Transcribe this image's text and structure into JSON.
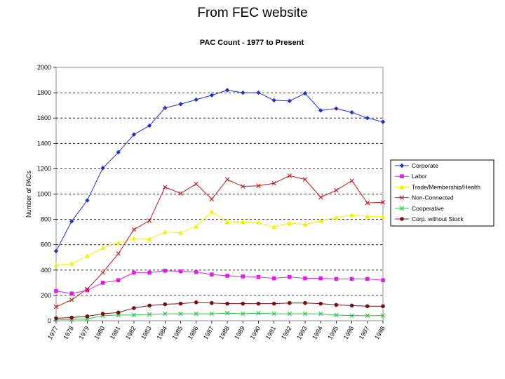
{
  "slide": {
    "title": "From FEC website"
  },
  "chart_data": {
    "type": "line",
    "title": "PAC Count - 1977 to Present",
    "xlabel": "",
    "ylabel": "Number of PACs",
    "ylim": [
      0,
      2000
    ],
    "yticks": [
      0,
      200,
      400,
      600,
      800,
      1000,
      1200,
      1400,
      1600,
      1800,
      2000
    ],
    "grid": "horizontal dashed",
    "legend_position": "right",
    "categories": [
      "1977",
      "1978",
      "1979",
      "1980",
      "1981",
      "1982",
      "1983",
      "1984",
      "1985",
      "1986",
      "1987",
      "1988",
      "1989",
      "1990",
      "1991",
      "1992",
      "1993",
      "1994",
      "1995",
      "1996",
      "1997",
      "1998"
    ],
    "x_tick_labels": [
      "1977",
      "1978",
      "1979",
      "1980",
      "1981",
      "1982",
      "1983",
      "1984",
      "1985",
      "1986",
      "1987",
      "1988",
      "1989",
      "1990",
      "1991",
      "1992",
      "1993",
      "1994",
      "1995",
      "1996",
      "1997",
      "1998"
    ],
    "series": [
      {
        "name": "Corporate",
        "color": "#1f32c8",
        "marker": "diamond",
        "values": [
          550,
          785,
          950,
          1205,
          1330,
          1470,
          1540,
          1680,
          1710,
          1745,
          1780,
          1820,
          1800,
          1800,
          1740,
          1735,
          1795,
          1660,
          1675,
          1645,
          1600,
          1570
        ]
      },
      {
        "name": "Labor",
        "color": "#e020e0",
        "marker": "square",
        "values": [
          235,
          215,
          240,
          300,
          320,
          380,
          380,
          395,
          390,
          385,
          365,
          355,
          350,
          345,
          335,
          345,
          335,
          335,
          330,
          330,
          330,
          320
        ]
      },
      {
        "name": "Trade/Membership/Health",
        "color": "#f2f200",
        "marker": "triangle",
        "values": [
          440,
          450,
          510,
          575,
          615,
          650,
          645,
          700,
          695,
          745,
          860,
          780,
          780,
          775,
          740,
          770,
          760,
          790,
          815,
          835,
          825,
          820
        ]
      },
      {
        "name": "Non-Connected",
        "color": "#c01818",
        "marker": "x",
        "values": [
          110,
          165,
          250,
          380,
          530,
          720,
          790,
          1055,
          1005,
          1080,
          960,
          1115,
          1060,
          1065,
          1085,
          1145,
          1115,
          975,
          1030,
          1105,
          930,
          935
        ]
      },
      {
        "name": "Cooperative",
        "color": "#22c040",
        "marker": "x",
        "values": [
          10,
          10,
          15,
          40,
          45,
          45,
          50,
          55,
          55,
          55,
          55,
          60,
          55,
          60,
          55,
          55,
          55,
          55,
          45,
          40,
          40,
          40
        ]
      },
      {
        "name": "Corp. without Stock",
        "color": "#7a0f0f",
        "marker": "circle",
        "values": [
          20,
          25,
          35,
          55,
          65,
          100,
          120,
          130,
          135,
          145,
          140,
          135,
          135,
          135,
          135,
          140,
          140,
          135,
          125,
          120,
          115,
          115
        ]
      }
    ]
  }
}
